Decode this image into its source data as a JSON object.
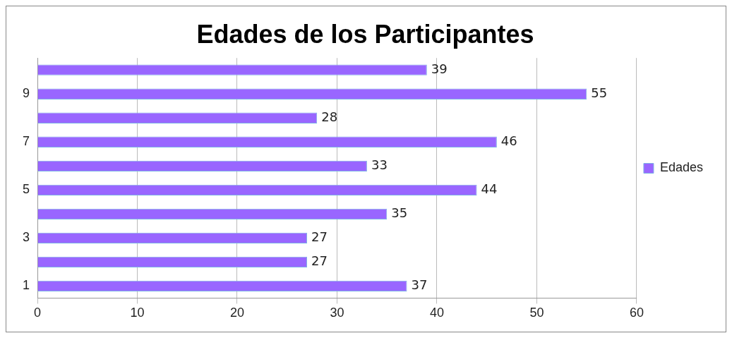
{
  "chart_data": {
    "type": "bar",
    "orientation": "horizontal",
    "title": "Edades de los Participantes",
    "categories": [
      null,
      "9",
      null,
      "7",
      null,
      "5",
      null,
      "3",
      null,
      "1"
    ],
    "series": [
      {
        "name": "Edades",
        "color": "#9966ff",
        "values": [
          39,
          55,
          28,
          46,
          33,
          44,
          35,
          27,
          27,
          37
        ]
      }
    ],
    "xlim": [
      0,
      60
    ],
    "xticks": [
      0,
      10,
      20,
      30,
      40,
      50,
      60
    ],
    "grid": "x",
    "legend": "right",
    "data_labels": true
  }
}
